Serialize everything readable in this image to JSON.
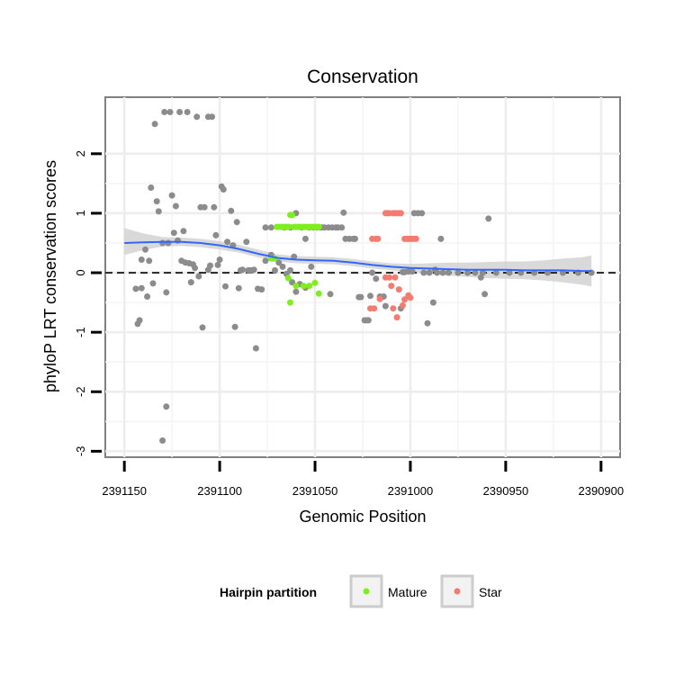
{
  "chart_data": {
    "type": "scatter",
    "title": "Conservation",
    "xlabel": "Genomic Position",
    "ylabel": "phyloP LRT conservation scores",
    "xlim": [
      2391160,
      2390890
    ],
    "ylim": [
      -3.1,
      2.95
    ],
    "x_reversed": true,
    "x_ticks": [
      2391150,
      2391100,
      2391050,
      2391000,
      2390950,
      2390900
    ],
    "x_tick_labels": [
      "2391150",
      "2391100",
      "2391050",
      "2391000",
      "2390950",
      "2390900"
    ],
    "y_ticks": [
      -3,
      -2,
      -1,
      0,
      1,
      2
    ],
    "y_tick_labels": [
      "-3",
      "-2",
      "-1",
      "0",
      "1",
      "2"
    ],
    "grid": true,
    "reference_line": {
      "y": 0,
      "style": "dashed",
      "color": "#000000"
    },
    "legend": {
      "title": "Hairpin partition",
      "position": "bottom",
      "entries": [
        {
          "label": "Mature",
          "color": "#7fee1f"
        },
        {
          "label": "Star",
          "color": "#f37b6f"
        }
      ]
    },
    "colors": {
      "other": "#8c8c8c",
      "Mature": "#7fee1f",
      "Star": "#f37b6f",
      "smooth": "#3366ff",
      "ribbon": "#cccccc"
    },
    "series": [
      {
        "name": "",
        "key": "other",
        "points": [
          [
            2391144,
            -0.27
          ],
          [
            2391142,
            -0.8
          ],
          [
            2391141,
            -0.26
          ],
          [
            2391143,
            -0.86
          ],
          [
            2391141,
            0.22
          ],
          [
            2391139,
            0.39
          ],
          [
            2391138,
            -0.4
          ],
          [
            2391137,
            0.2
          ],
          [
            2391136,
            1.43
          ],
          [
            2391135,
            -0.18
          ],
          [
            2391134,
            2.5
          ],
          [
            2391133,
            1.2
          ],
          [
            2391132,
            1.03
          ],
          [
            2391130,
            0.5
          ],
          [
            2391129,
            2.7
          ],
          [
            2391127,
            0.5
          ],
          [
            2391128,
            -0.33
          ],
          [
            2391126,
            2.7
          ],
          [
            2391125,
            1.3
          ],
          [
            2391124,
            0.67
          ],
          [
            2391123,
            1.12
          ],
          [
            2391122,
            0.54
          ],
          [
            2391121,
            2.7
          ],
          [
            2391120,
            0.2
          ],
          [
            2391119,
            0.7
          ],
          [
            2391118,
            0.17
          ],
          [
            2391117,
            2.7
          ],
          [
            2391116,
            0.16
          ],
          [
            2391115,
            -0.16
          ],
          [
            2391114,
            0.14
          ],
          [
            2391113,
            0.08
          ],
          [
            2391112,
            2.62
          ],
          [
            2391111,
            -0.06
          ],
          [
            2391110,
            1.1
          ],
          [
            2391109,
            -0.92
          ],
          [
            2391108,
            1.1
          ],
          [
            2391106,
            0.05
          ],
          [
            2391106,
            2.62
          ],
          [
            2391105,
            0.12
          ],
          [
            2391104,
            2.62
          ],
          [
            2391103,
            1.1
          ],
          [
            2391102,
            0.63
          ],
          [
            2391101,
            0.13
          ],
          [
            2391100,
            0.22
          ],
          [
            2391099,
            1.45
          ],
          [
            2391098,
            1.4
          ],
          [
            2391097,
            -0.23
          ],
          [
            2391096,
            0.52
          ],
          [
            2391094,
            1.04
          ],
          [
            2391093,
            0.46
          ],
          [
            2391092,
            -0.91
          ],
          [
            2391091,
            0.85
          ],
          [
            2391090,
            -0.26
          ],
          [
            2391089,
            0.04
          ],
          [
            2391088,
            0.05
          ],
          [
            2391086,
            0.52
          ],
          [
            2391085,
            0.04
          ],
          [
            2391084,
            0.04
          ],
          [
            2391083,
            0.04
          ],
          [
            2391082,
            0.05
          ],
          [
            2391081,
            -1.27
          ],
          [
            2391080,
            -0.27
          ],
          [
            2391078,
            -0.28
          ],
          [
            2391076,
            0.2
          ],
          [
            2391073,
            0.3
          ],
          [
            2391071,
            0.04
          ],
          [
            2391069,
            0.17
          ],
          [
            2391067,
            0.1
          ],
          [
            2391065,
            -0.02
          ],
          [
            2391063,
            0.04
          ],
          [
            2391062,
            -0.16
          ],
          [
            2391061,
            0.27
          ],
          [
            2391060,
            -0.32
          ],
          [
            2391058,
            -0.19
          ],
          [
            2391057,
            0.76
          ],
          [
            2391055,
            -0.25
          ],
          [
            2391053,
            0.76
          ],
          [
            2391052,
            0.1
          ],
          [
            2391051,
            0.76
          ],
          [
            2391049,
            0.76
          ],
          [
            2391047,
            0.76
          ],
          [
            2391046,
            0.76
          ],
          [
            2391045,
            0.76
          ],
          [
            2391043,
            0.76
          ],
          [
            2391042,
            -0.36
          ],
          [
            2391041,
            0.76
          ],
          [
            2391039,
            0.76
          ],
          [
            2391038,
            0.76
          ],
          [
            2391036,
            0.76
          ],
          [
            2391035,
            1.01
          ],
          [
            2391034,
            0.57
          ],
          [
            2391032,
            0.57
          ],
          [
            2391030,
            0.57
          ],
          [
            2391029,
            0.57
          ],
          [
            2391027,
            -0.41
          ],
          [
            2391026,
            -0.41
          ],
          [
            2391024,
            -0.8
          ],
          [
            2391023,
            -0.8
          ],
          [
            2391022,
            -0.8
          ],
          [
            2391021,
            -0.39
          ],
          [
            2391020,
            0.0
          ],
          [
            2391018,
            -0.1
          ],
          [
            2391016,
            -0.4
          ],
          [
            2391014,
            -0.4
          ],
          [
            2391013,
            -0.56
          ],
          [
            2391005,
            -0.6
          ],
          [
            2391004,
            0.01
          ],
          [
            2391003,
            0.01
          ],
          [
            2391001,
            0.02
          ],
          [
            2390999,
            0.02
          ],
          [
            2390998,
            1.0
          ],
          [
            2390996,
            1.0
          ],
          [
            2390994,
            1.0
          ],
          [
            2390993,
            0.0
          ],
          [
            2390991,
            -0.85
          ],
          [
            2390990,
            0.0
          ],
          [
            2390988,
            -0.5
          ],
          [
            2390987,
            0.05
          ],
          [
            2390986,
            0.0
          ],
          [
            2390984,
            0.57
          ],
          [
            2390983,
            0.0
          ],
          [
            2390980,
            0.0
          ],
          [
            2390975,
            0.0
          ],
          [
            2390970,
            0.0
          ],
          [
            2390966,
            0.0
          ],
          [
            2390963,
            -0.08
          ],
          [
            2390962,
            0.0
          ],
          [
            2390961,
            -0.36
          ],
          [
            2390959,
            0.91
          ],
          [
            2390955,
            0.0
          ],
          [
            2390948,
            0.0
          ],
          [
            2390942,
            0.0
          ],
          [
            2390935,
            0.0
          ],
          [
            2390928,
            0.0
          ],
          [
            2390920,
            0.0
          ],
          [
            2390912,
            0.0
          ],
          [
            2390905,
            0.0
          ],
          [
            2391130,
            -2.82
          ],
          [
            2391128,
            -2.25
          ],
          [
            2391060,
            1.0
          ],
          [
            2391076,
            0.76
          ],
          [
            2391073,
            0.76
          ],
          [
            2391063,
            0.76
          ],
          [
            2391066,
            0.76
          ],
          [
            2391055,
            0.57
          ]
        ]
      },
      {
        "name": "Mature",
        "key": "Mature",
        "points": [
          [
            2391073,
            0.24
          ],
          [
            2391072,
            0.24
          ],
          [
            2391071,
            0.24
          ],
          [
            2391070,
            0.77
          ],
          [
            2391069,
            0.77
          ],
          [
            2391068,
            0.77
          ],
          [
            2391067,
            0.77
          ],
          [
            2391066,
            0.77
          ],
          [
            2391065,
            0.77
          ],
          [
            2391064,
            0.77
          ],
          [
            2391063,
            0.97
          ],
          [
            2391062,
            0.97
          ],
          [
            2391061,
            0.77
          ],
          [
            2391060,
            0.77
          ],
          [
            2391059,
            0.77
          ],
          [
            2391058,
            0.77
          ],
          [
            2391057,
            0.77
          ],
          [
            2391056,
            0.77
          ],
          [
            2391055,
            0.77
          ],
          [
            2391054,
            0.77
          ],
          [
            2391053,
            0.77
          ],
          [
            2391052,
            0.77
          ],
          [
            2391051,
            0.77
          ],
          [
            2391050,
            0.77
          ],
          [
            2391049,
            0.77
          ],
          [
            2391048,
            0.77
          ],
          [
            2391064,
            -0.09
          ],
          [
            2391063,
            -0.5
          ],
          [
            2391060,
            -0.22
          ],
          [
            2391056,
            -0.22
          ],
          [
            2391053,
            -0.22
          ],
          [
            2391050,
            -0.17
          ],
          [
            2391048,
            -0.35
          ]
        ]
      },
      {
        "name": "Star",
        "key": "Star",
        "points": [
          [
            2391020,
            0.57
          ],
          [
            2391018,
            0.57
          ],
          [
            2391017,
            0.57
          ],
          [
            2391013,
            1.0
          ],
          [
            2391012,
            1.0
          ],
          [
            2391011,
            1.0
          ],
          [
            2391009,
            1.0
          ],
          [
            2391008,
            1.0
          ],
          [
            2391007,
            1.0
          ],
          [
            2391006,
            1.0
          ],
          [
            2391005,
            1.0
          ],
          [
            2391003,
            0.57
          ],
          [
            2391002,
            0.57
          ],
          [
            2391001,
            0.57
          ],
          [
            2391000,
            0.57
          ],
          [
            2390999,
            0.57
          ],
          [
            2390998,
            0.57
          ],
          [
            2390997,
            0.57
          ],
          [
            2391013,
            -0.08
          ],
          [
            2391011,
            -0.08
          ],
          [
            2391008,
            -0.08
          ],
          [
            2391021,
            -0.6
          ],
          [
            2391019,
            -0.6
          ],
          [
            2391016,
            -0.44
          ],
          [
            2391010,
            -0.22
          ],
          [
            2391006,
            -0.28
          ],
          [
            2391004,
            -0.55
          ],
          [
            2391003,
            -0.45
          ],
          [
            2391001,
            -0.38
          ],
          [
            2391000,
            -0.42
          ],
          [
            2391007,
            -0.75
          ],
          [
            2391009,
            -0.6
          ]
        ]
      }
    ],
    "smooth": {
      "x": [
        2391150,
        2391140,
        2391130,
        2391120,
        2391110,
        2391100,
        2391090,
        2391080,
        2391070,
        2391060,
        2391050,
        2391040,
        2391030,
        2391020,
        2391010,
        2391000,
        2390990,
        2390980,
        2390970,
        2390960,
        2390950,
        2390940,
        2390930,
        2390920,
        2390910,
        2390905
      ],
      "y": [
        0.5,
        0.51,
        0.52,
        0.52,
        0.5,
        0.46,
        0.4,
        0.32,
        0.25,
        0.22,
        0.21,
        0.2,
        0.17,
        0.13,
        0.1,
        0.08,
        0.07,
        0.06,
        0.05,
        0.05,
        0.05,
        0.04,
        0.04,
        0.04,
        0.03,
        0.03
      ],
      "lower": [
        0.3,
        0.38,
        0.44,
        0.45,
        0.43,
        0.39,
        0.34,
        0.26,
        0.19,
        0.16,
        0.15,
        0.14,
        0.11,
        0.07,
        0.04,
        0.01,
        -0.02,
        -0.05,
        -0.07,
        -0.09,
        -0.1,
        -0.11,
        -0.13,
        -0.16,
        -0.2,
        -0.23
      ],
      "upper": [
        0.75,
        0.66,
        0.6,
        0.59,
        0.57,
        0.53,
        0.47,
        0.39,
        0.31,
        0.28,
        0.27,
        0.26,
        0.23,
        0.19,
        0.16,
        0.15,
        0.16,
        0.17,
        0.17,
        0.18,
        0.19,
        0.19,
        0.21,
        0.24,
        0.26,
        0.29
      ]
    }
  }
}
